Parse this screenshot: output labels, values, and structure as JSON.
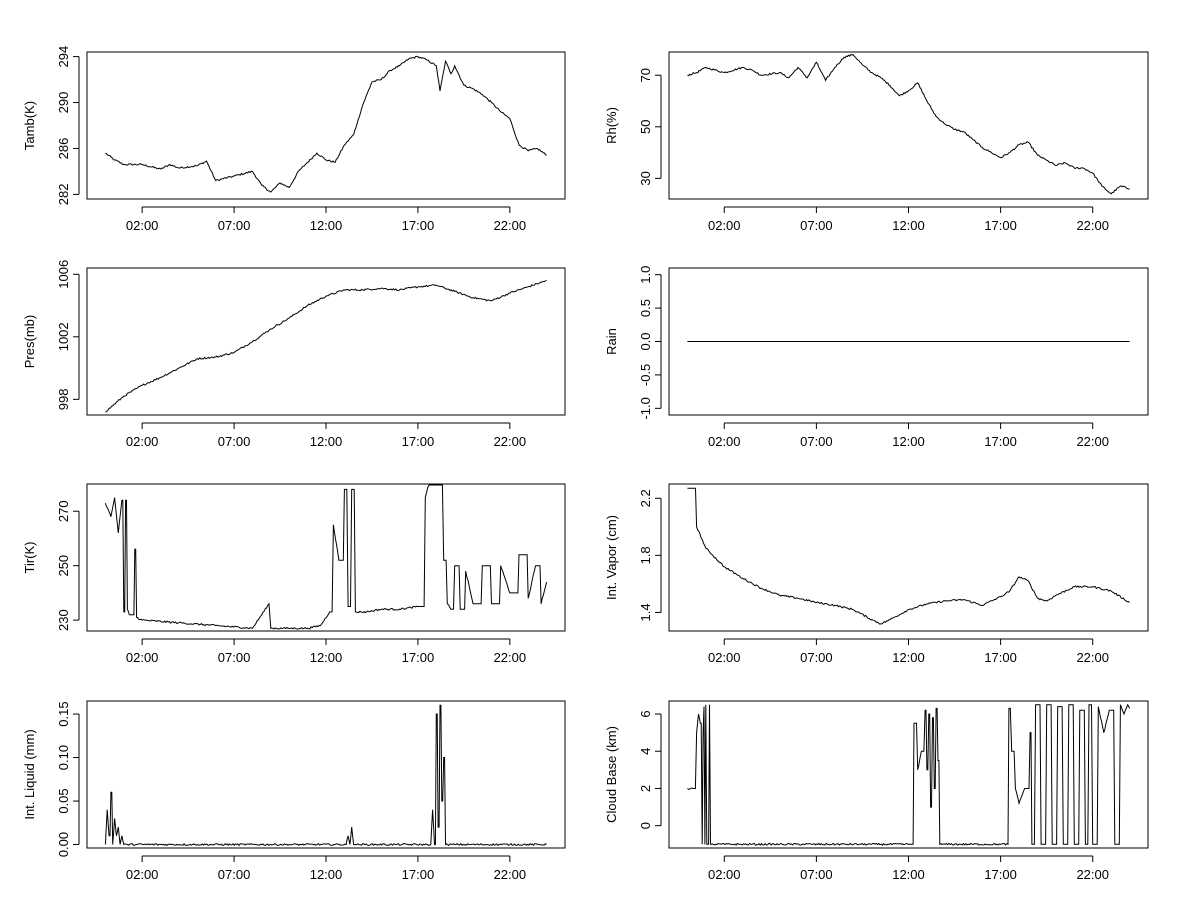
{
  "x_ticks": [
    "02:00",
    "07:00",
    "12:00",
    "17:00",
    "22:00"
  ],
  "x_tick_hours": [
    2,
    7,
    12,
    17,
    22
  ],
  "x_range_hours": [
    -1,
    25
  ],
  "chart_data": [
    {
      "type": "line",
      "ylabel": "Tamb(K)",
      "yticks": [
        282,
        286,
        290,
        294
      ],
      "ylim": [
        281.6,
        294.4
      ],
      "x_hours": [
        0,
        0.5,
        1,
        2,
        3,
        3.5,
        4,
        5,
        5.5,
        6,
        7,
        8,
        8.5,
        9,
        9.5,
        10,
        10.5,
        11,
        11.5,
        12,
        12.5,
        13,
        13.5,
        14,
        14.5,
        15,
        15.5,
        16,
        16.5,
        17,
        17.5,
        18,
        18.2,
        18.5,
        18.8,
        19,
        19.5,
        20,
        20.5,
        21,
        21.5,
        22,
        22.5,
        23,
        23.5,
        24
      ],
      "values": [
        285.6,
        285.0,
        284.6,
        284.6,
        284.2,
        284.6,
        284.3,
        284.5,
        284.9,
        283.2,
        283.6,
        284.0,
        282.8,
        282.2,
        283.0,
        282.6,
        284.0,
        284.8,
        285.6,
        285.0,
        284.8,
        286.3,
        287.2,
        289.8,
        291.8,
        292.0,
        292.8,
        293.2,
        293.8,
        294.0,
        293.7,
        293.2,
        291.0,
        293.6,
        292.5,
        293.2,
        291.5,
        291.2,
        290.7,
        290.0,
        289.2,
        288.6,
        286.3,
        285.8,
        286.0,
        285.4
      ]
    },
    {
      "type": "line",
      "ylabel": "Rh(%)",
      "yticks": [
        30,
        50,
        70
      ],
      "ylim": [
        22,
        79
      ],
      "x_hours": [
        0,
        0.5,
        1,
        2,
        3,
        3.5,
        4,
        5,
        5.5,
        6,
        6.5,
        7,
        7.5,
        8,
        8.5,
        9,
        9.5,
        10,
        10.5,
        11,
        11.5,
        12,
        12.5,
        13,
        13.5,
        14,
        14.5,
        15,
        15.5,
        16,
        16.5,
        17,
        17.5,
        18,
        18.5,
        19,
        19.5,
        20,
        20.5,
        21,
        21.5,
        22,
        22.5,
        23,
        23.5,
        24
      ],
      "values": [
        70,
        71,
        73,
        71,
        73,
        72,
        70,
        71,
        69,
        73,
        69,
        75,
        68,
        73,
        77,
        78,
        74,
        71,
        69,
        66,
        62,
        64,
        67,
        60,
        54,
        51,
        49,
        48,
        45,
        42,
        40,
        38,
        40,
        43,
        44,
        39,
        37,
        35,
        36,
        34,
        34,
        32,
        27,
        24,
        27,
        26
      ]
    },
    {
      "type": "line",
      "ylabel": "Pres(mb)",
      "yticks": [
        998,
        1002,
        1006
      ],
      "ylim": [
        997.0,
        1006.4
      ],
      "x_hours": [
        0,
        1,
        2,
        3,
        4,
        5,
        6,
        7,
        8,
        9,
        10,
        11,
        12,
        13,
        14,
        15,
        16,
        17,
        18,
        19,
        20,
        21,
        22,
        23,
        24
      ],
      "values": [
        997.2,
        998.2,
        998.9,
        999.4,
        1000.0,
        1000.6,
        1000.7,
        1001.0,
        1001.7,
        1002.5,
        1003.2,
        1004.0,
        1004.6,
        1005.0,
        1005.0,
        1005.1,
        1005.0,
        1005.2,
        1005.3,
        1004.9,
        1004.5,
        1004.3,
        1004.8,
        1005.2,
        1005.6
      ]
    },
    {
      "type": "line",
      "ylabel": "Rain",
      "yticks": [
        -1.0,
        -0.5,
        0.0,
        0.5,
        1.0
      ],
      "ylim": [
        -1.1,
        1.1
      ],
      "x_hours": [
        0,
        24
      ],
      "values": [
        0.0,
        0.0
      ]
    },
    {
      "type": "line",
      "ylabel": "Tir(K)",
      "yticks": [
        230,
        250,
        270
      ],
      "ylim": [
        226,
        280
      ],
      "x_hours": [
        0,
        0.3,
        0.5,
        0.7,
        0.9,
        1.0,
        1.1,
        1.2,
        1.3,
        1.5,
        1.6,
        1.7,
        2,
        4,
        6,
        8,
        8.9,
        9.0,
        9.1,
        10,
        11,
        11.7,
        12.2,
        12.4,
        12.7,
        13.0,
        13.2,
        13.4,
        13.6,
        13.9,
        14.2,
        15,
        16,
        17,
        17.4,
        17.6,
        17.8,
        18.0,
        18.4,
        18.6,
        18.8,
        19.0,
        19.3,
        19.6,
        20.0,
        20.5,
        21.0,
        21.5,
        22.0,
        22.5,
        23.0,
        23.4,
        23.7,
        24
      ],
      "values": [
        273,
        268,
        275,
        262,
        274,
        233,
        274,
        234,
        232,
        232,
        256,
        231,
        230,
        229,
        228,
        227,
        236,
        227,
        227,
        227,
        227,
        228,
        233,
        265,
        252,
        278,
        235,
        278,
        233,
        233,
        233,
        234,
        234,
        235,
        275,
        280,
        280,
        280,
        252,
        236,
        234,
        250,
        234,
        248,
        236,
        250,
        236,
        250,
        240,
        254,
        238,
        250,
        236,
        244
      ]
    },
    {
      "type": "line",
      "ylabel": "Int. Vapor (cm)",
      "yticks": [
        1.4,
        1.8,
        2.2
      ],
      "ylim": [
        1.27,
        2.3
      ],
      "x_hours": [
        0,
        0.5,
        1,
        2,
        3,
        4,
        5,
        6,
        7,
        8,
        9,
        10,
        10.5,
        11,
        12,
        13,
        14,
        15,
        16,
        17,
        17.5,
        18,
        18.5,
        19,
        19.5,
        20,
        21,
        22,
        23,
        24
      ],
      "values": [
        2.27,
        2.0,
        1.85,
        1.72,
        1.64,
        1.57,
        1.52,
        1.5,
        1.47,
        1.45,
        1.42,
        1.35,
        1.32,
        1.35,
        1.42,
        1.46,
        1.48,
        1.49,
        1.45,
        1.51,
        1.55,
        1.65,
        1.62,
        1.5,
        1.48,
        1.52,
        1.58,
        1.58,
        1.55,
        1.47
      ]
    },
    {
      "type": "line",
      "ylabel": "Int. Liquid (mm)",
      "yticks": [
        0.0,
        0.05,
        0.1,
        0.15
      ],
      "ylim": [
        -0.004,
        0.165
      ],
      "x_hours": [
        0,
        0.1,
        0.2,
        0.3,
        0.4,
        0.5,
        0.6,
        0.7,
        0.8,
        0.9,
        1.0,
        1.2,
        5,
        10,
        13.1,
        13.2,
        13.3,
        13.4,
        13.5,
        13.6,
        17.5,
        17.7,
        17.8,
        17.9,
        18.0,
        18.1,
        18.2,
        18.3,
        18.4,
        18.5,
        18.6,
        19,
        22,
        24
      ],
      "values": [
        0.0,
        0.04,
        0.01,
        0.06,
        0.0,
        0.03,
        0.01,
        0.02,
        0.0,
        0.01,
        0.0,
        0.0,
        0.0,
        0.0,
        0.0,
        0.01,
        0.0,
        0.02,
        0.0,
        0.0,
        0.0,
        0.0,
        0.04,
        0.0,
        0.15,
        0.02,
        0.16,
        0.05,
        0.1,
        0.0,
        0.0,
        0.0,
        0.0,
        0.0
      ]
    },
    {
      "type": "line",
      "ylabel": "Cloud Base (km)",
      "yticks": [
        0,
        2,
        4,
        6
      ],
      "ylim": [
        -1.2,
        6.7
      ],
      "x_hours": [
        0,
        0.3,
        0.5,
        0.6,
        0.7,
        0.8,
        0.85,
        0.9,
        0.95,
        1.0,
        1.05,
        1.1,
        1.2,
        1.25,
        1.3,
        1.4,
        5,
        10,
        12.2,
        12.3,
        12.5,
        12.7,
        12.9,
        13.0,
        13.1,
        13.2,
        13.3,
        13.4,
        13.5,
        13.6,
        13.7,
        14,
        17.0,
        17.4,
        17.45,
        17.6,
        17.8,
        18.0,
        18.3,
        18.6,
        18.7,
        18.9,
        19.2,
        19.5,
        19.8,
        20.1,
        20.4,
        20.7,
        21.0,
        21.3,
        21.6,
        21.8,
        22.0,
        22.3,
        22.6,
        22.9,
        23.2,
        23.5,
        23.7,
        23.9,
        24
      ],
      "values": [
        2,
        2,
        5,
        6,
        5.5,
        -1,
        5,
        6.4,
        -1,
        6.5,
        -1,
        -1,
        6.5,
        -1,
        -1,
        -1,
        -1,
        -1,
        -1,
        5.5,
        3,
        4,
        6.2,
        3,
        6,
        1,
        5.8,
        2,
        6.3,
        3.5,
        -1,
        -1,
        -1,
        -1,
        6.3,
        4,
        2,
        1.2,
        2,
        5,
        -1,
        6.5,
        -1,
        6.5,
        -1,
        6.4,
        -1,
        6.5,
        -1,
        6.2,
        -1,
        6.5,
        -1,
        6.4,
        5,
        6.2,
        -1,
        6.5,
        6,
        6.5,
        6.3
      ]
    }
  ]
}
